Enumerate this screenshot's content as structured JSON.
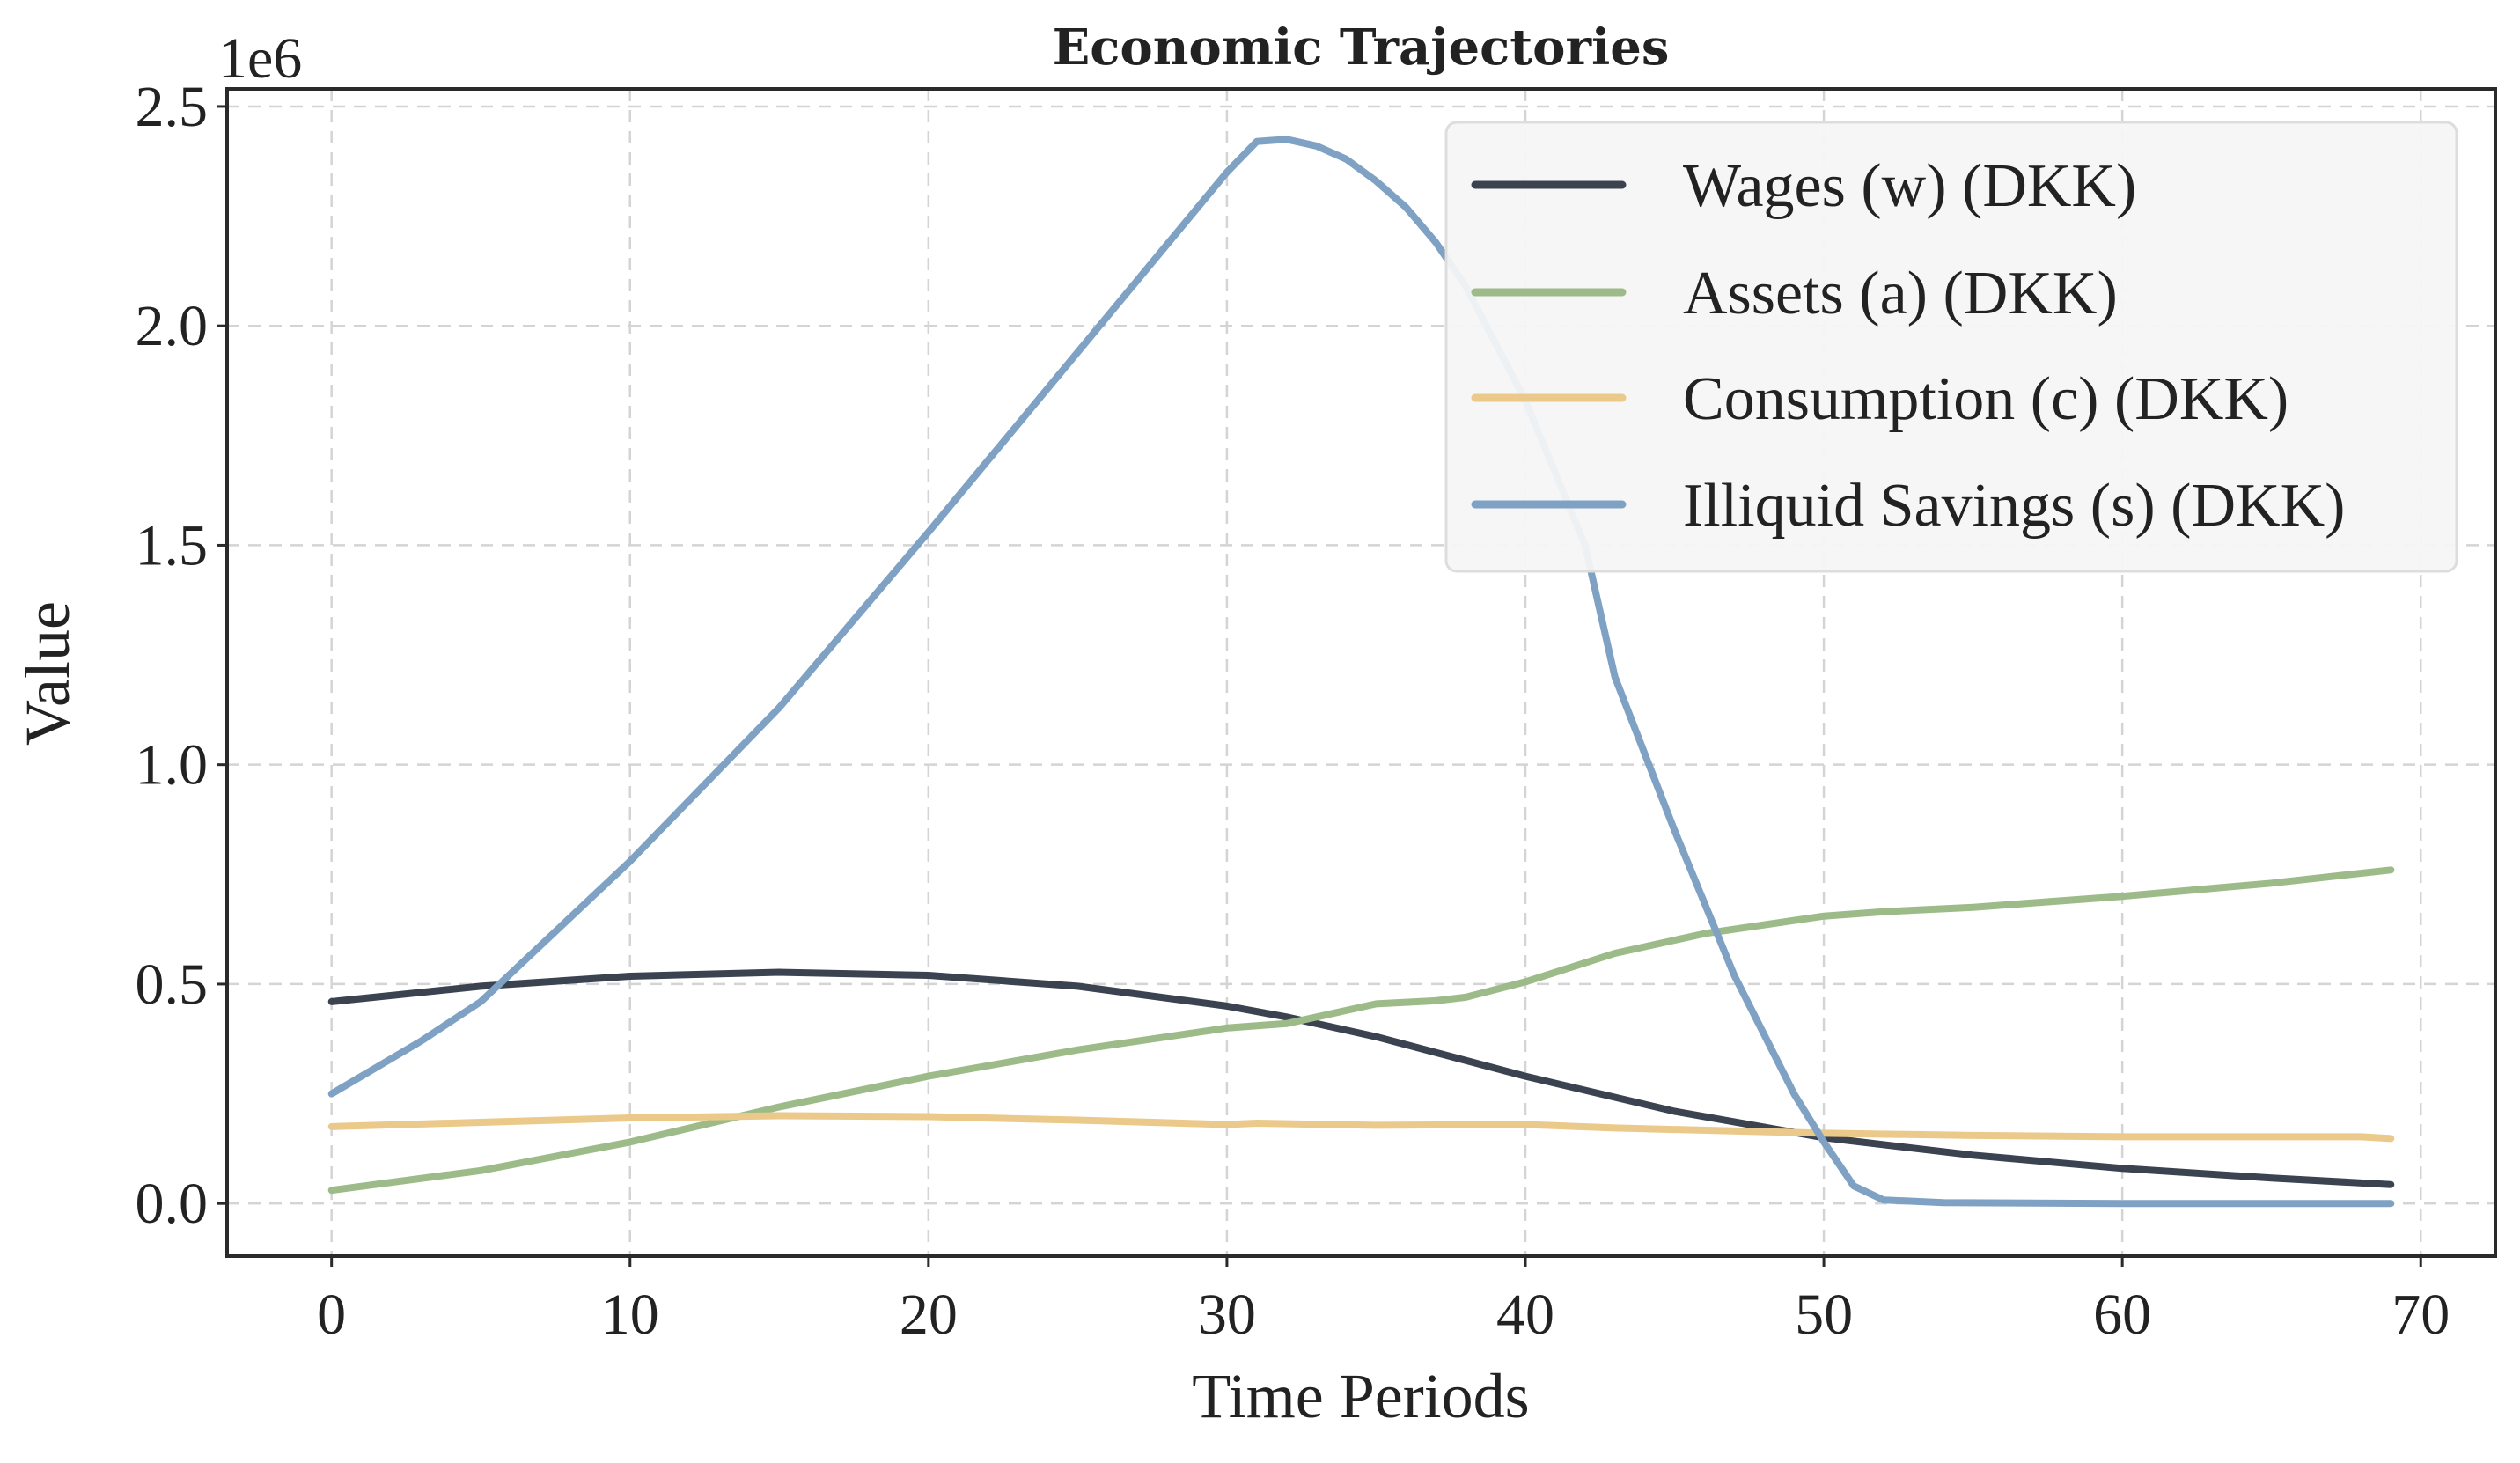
{
  "chart_data": {
    "type": "line",
    "title": "Economic Trajectories",
    "xlabel": "Time Periods",
    "ylabel": "Value",
    "y_offset_label": "1e6",
    "xlim": [
      -3.5,
      72.5
    ],
    "ylim": [
      -0.12,
      2.54
    ],
    "x_ticks": [
      0,
      10,
      20,
      30,
      40,
      50,
      60,
      70
    ],
    "x_tick_labels": [
      "0",
      "10",
      "20",
      "30",
      "40",
      "50",
      "60",
      "70"
    ],
    "y_ticks": [
      0.0,
      0.5,
      1.0,
      1.5,
      2.0,
      2.5
    ],
    "y_tick_labels": [
      "0.0",
      "0.5",
      "1.0",
      "1.5",
      "2.0",
      "2.5"
    ],
    "grid": true,
    "legend_position": "top-right",
    "series": [
      {
        "name": "Wages (w) (DKK)",
        "color": "#3b4250",
        "points": [
          [
            0,
            0.46
          ],
          [
            5,
            0.495
          ],
          [
            10,
            0.518
          ],
          [
            15,
            0.527
          ],
          [
            20,
            0.52
          ],
          [
            25,
            0.495
          ],
          [
            30,
            0.45
          ],
          [
            32,
            0.425
          ],
          [
            35,
            0.38
          ],
          [
            40,
            0.29
          ],
          [
            45,
            0.21
          ],
          [
            50,
            0.15
          ],
          [
            55,
            0.11
          ],
          [
            60,
            0.08
          ],
          [
            65,
            0.058
          ],
          [
            69,
            0.043
          ]
        ]
      },
      {
        "name": "Assets (a) (DKK)",
        "color": "#9dbb88",
        "points": [
          [
            0,
            0.03
          ],
          [
            5,
            0.075
          ],
          [
            10,
            0.14
          ],
          [
            15,
            0.22
          ],
          [
            20,
            0.29
          ],
          [
            25,
            0.35
          ],
          [
            30,
            0.4
          ],
          [
            32,
            0.41
          ],
          [
            35,
            0.455
          ],
          [
            37,
            0.462
          ],
          [
            38,
            0.47
          ],
          [
            40,
            0.505
          ],
          [
            43,
            0.57
          ],
          [
            46,
            0.615
          ],
          [
            50,
            0.655
          ],
          [
            52,
            0.665
          ],
          [
            55,
            0.675
          ],
          [
            60,
            0.7
          ],
          [
            65,
            0.73
          ],
          [
            69,
            0.76
          ]
        ]
      },
      {
        "name": "Consumption (c) (DKK)",
        "color": "#ebc98a",
        "points": [
          [
            0,
            0.175
          ],
          [
            10,
            0.195
          ],
          [
            15,
            0.2
          ],
          [
            20,
            0.198
          ],
          [
            25,
            0.19
          ],
          [
            30,
            0.18
          ],
          [
            31,
            0.183
          ],
          [
            35,
            0.178
          ],
          [
            40,
            0.18
          ],
          [
            43,
            0.172
          ],
          [
            50,
            0.16
          ],
          [
            55,
            0.155
          ],
          [
            60,
            0.152
          ],
          [
            68,
            0.152
          ],
          [
            69,
            0.148
          ]
        ]
      },
      {
        "name": "Illiquid Savings (s) (DKK)",
        "color": "#7fa2c4",
        "points": [
          [
            0,
            0.25
          ],
          [
            3,
            0.37
          ],
          [
            5,
            0.46
          ],
          [
            10,
            0.78
          ],
          [
            15,
            1.13
          ],
          [
            20,
            1.53
          ],
          [
            25,
            1.94
          ],
          [
            30,
            2.35
          ],
          [
            31,
            2.42
          ],
          [
            32,
            2.425
          ],
          [
            33,
            2.41
          ],
          [
            34,
            2.38
          ],
          [
            35,
            2.33
          ],
          [
            36,
            2.27
          ],
          [
            37,
            2.19
          ],
          [
            38,
            2.09
          ],
          [
            40,
            1.83
          ],
          [
            42,
            1.5
          ],
          [
            43,
            1.2
          ],
          [
            45,
            0.85
          ],
          [
            47,
            0.52
          ],
          [
            49,
            0.25
          ],
          [
            50,
            0.14
          ],
          [
            51,
            0.04
          ],
          [
            52,
            0.008
          ],
          [
            54,
            0.002
          ],
          [
            60,
            0.0
          ],
          [
            69,
            0.0
          ]
        ]
      }
    ]
  }
}
